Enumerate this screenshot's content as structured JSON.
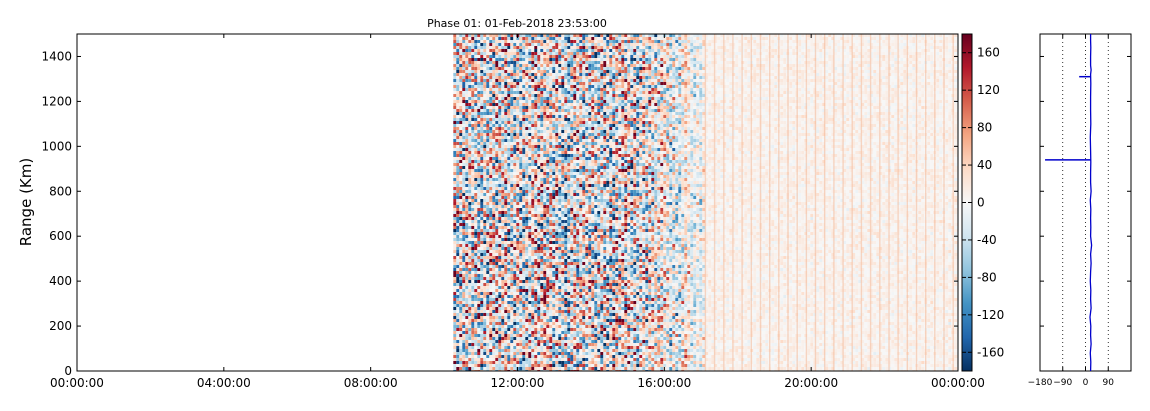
{
  "chart_data": [
    {
      "type": "heatmap",
      "title": "Phase 01: 01-Feb-2018 23:53:00",
      "xlabel": "",
      "ylabel": "Range (Km)",
      "x_ticks": [
        "00:00:00",
        "04:00:00",
        "08:00:00",
        "12:00:00",
        "16:00:00",
        "20:00:00",
        "00:00:00"
      ],
      "x_range_hours": [
        0,
        24
      ],
      "ylim": [
        0,
        1500
      ],
      "y_ticks": [
        0,
        200,
        400,
        600,
        800,
        1000,
        1200,
        1400
      ],
      "data_start_hour": 10.25,
      "high_variance_end_hour": 17.1,
      "vertical_stripes_spacing_hours": 0.25,
      "colorscale": "RdBu_r",
      "colorbar": {
        "range": [
          -180,
          180
        ],
        "ticks": [
          160,
          120,
          80,
          40,
          0,
          -40,
          -80,
          -120,
          -160
        ],
        "colors": [
          "#67001f",
          "#b2182b",
          "#d6604d",
          "#f4a582",
          "#fddbc7",
          "#f7f7f7",
          "#d1e5f0",
          "#92c5de",
          "#4393c3",
          "#2166ac",
          "#053061"
        ]
      },
      "grid": false
    },
    {
      "type": "line",
      "title": "",
      "xlabel": "",
      "ylabel": "",
      "xlim": [
        -180,
        180
      ],
      "x_ticks": [
        -180,
        -90,
        0,
        90
      ],
      "ylim": [
        0,
        1500
      ],
      "reference_lines_x": [
        -90,
        0,
        90
      ],
      "series": [
        {
          "color": "#0000cc",
          "x": [
            20,
            21,
            19,
            22,
            20,
            21,
            18,
            22,
            20,
            21,
            19,
            20,
            22,
            20,
            24,
            20,
            21,
            20,
            21,
            19,
            22,
            20,
            20,
            21,
            20,
            19,
            21,
            20,
            20,
            21,
            20,
            22,
            20,
            20,
            21,
            20,
            20,
            20
          ],
          "y": [
            0,
            40,
            80,
            120,
            160,
            200,
            240,
            280,
            320,
            360,
            400,
            440,
            480,
            520,
            560,
            600,
            640,
            680,
            720,
            760,
            800,
            840,
            880,
            930,
            980,
            1040,
            1100,
            1160,
            1220,
            1280,
            1320,
            1340,
            1360,
            1400,
            1440,
            1470,
            1490,
            1500
          ]
        }
      ],
      "spikes": [
        {
          "y": 940,
          "x_min": -160,
          "x_max": 20
        },
        {
          "y": 1310,
          "x_min": -25,
          "x_max": 20
        }
      ]
    }
  ]
}
